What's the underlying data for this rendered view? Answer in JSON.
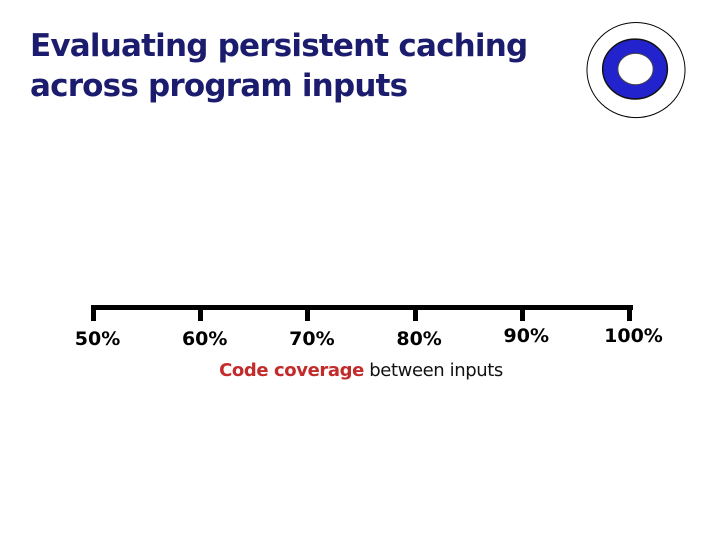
{
  "slide": {
    "title": {
      "line1": "Evaluating persistent caching",
      "line2": "across program inputs",
      "color": "#1c1c6e"
    },
    "logo": {
      "name": "bullseye-logo",
      "outer_fill": "#ffffff",
      "ring_color": "#2323cd",
      "outline_color": "#000000"
    }
  },
  "chart_data": {
    "type": "scatter",
    "title": "",
    "xlabel_highlight": "Code coverage",
    "xlabel_rest": " between inputs",
    "xlabel_highlight_color": "#c32b2b",
    "xlabel_rest_color": "#111111",
    "x_tick_labels": [
      "50%",
      "60%",
      "70%",
      "80%",
      "90%",
      "100%"
    ],
    "x_tick_values": [
      50,
      60,
      70,
      80,
      90,
      100
    ],
    "xlim": [
      50,
      100
    ],
    "grid": false,
    "legend": false,
    "series": [],
    "points": []
  }
}
